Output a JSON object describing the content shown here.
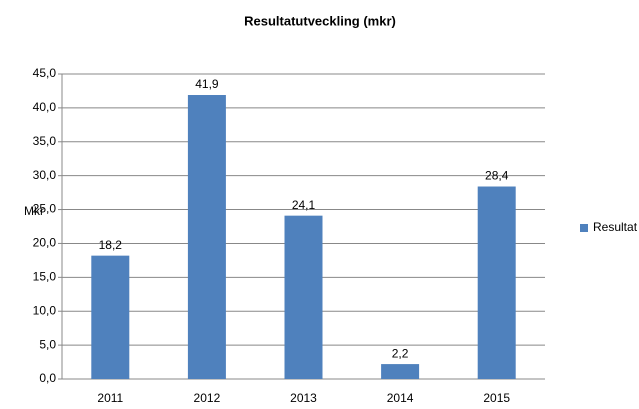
{
  "chart_data": {
    "type": "bar",
    "title": "Resultatutveckling (mkr)",
    "y_label": "Mkr",
    "categories": [
      "2011",
      "2012",
      "2013",
      "2014",
      "2015"
    ],
    "series": [
      {
        "name": "Resultat",
        "color": "#4f81bd",
        "values": [
          18.2,
          41.9,
          24.1,
          2.2,
          28.4
        ],
        "value_labels": [
          "18,2",
          "41,9",
          "24,1",
          "2,2",
          "28,4"
        ]
      }
    ],
    "ylim": [
      0,
      45
    ],
    "yticks": [
      {
        "value": 0,
        "label": "0,0"
      },
      {
        "value": 5,
        "label": "5,0"
      },
      {
        "value": 10,
        "label": "10,0"
      },
      {
        "value": 15,
        "label": "15,0"
      },
      {
        "value": 20,
        "label": "20,0"
      },
      {
        "value": 25,
        "label": "25,0"
      },
      {
        "value": 30,
        "label": "30,0"
      },
      {
        "value": 35,
        "label": "35,0"
      },
      {
        "value": 40,
        "label": "40,0"
      },
      {
        "value": 45,
        "label": "45,0"
      }
    ],
    "grid": true,
    "legend": "right"
  }
}
